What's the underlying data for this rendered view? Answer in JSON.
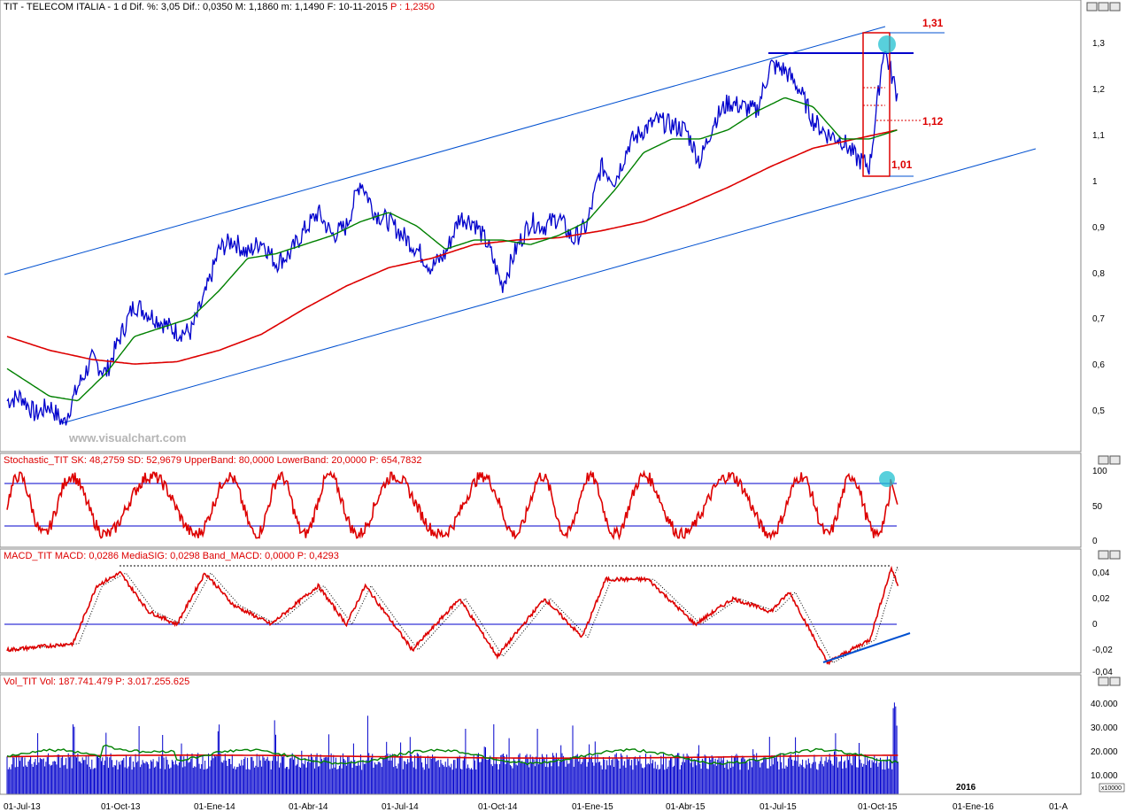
{
  "colors": {
    "price": "#0000cc",
    "ma_fast": "#008000",
    "ma_slow": "#dd0000",
    "channel": "#0050d0",
    "highlight": "#20c0d0",
    "header_red": "#dd0000"
  },
  "main_panel": {
    "header_text": "TIT - TELECOM ITALIA - 1 d Dif. %: 3,05 Dif.: 0,0350 M: 1,1860 m: 1,1490 F: 10-11-2015",
    "header_price": "P : 1,2350",
    "watermark": "www.visualchart.com",
    "annotations": {
      "high": "1,31",
      "mid": "1,12",
      "low": "1,01"
    },
    "y_ticks": [
      "1,3",
      "1,2",
      "1,1",
      "1",
      "0,9",
      "0,8",
      "0,7",
      "0,6",
      "0,5"
    ]
  },
  "stoch_panel": {
    "header": "Stochastic_TIT SK: 48,2759 SD: 52,9679 UpperBand: 80,0000 LowerBand: 20,0000 P: 654,7832",
    "y_ticks": [
      "100",
      "50",
      "0"
    ]
  },
  "macd_panel": {
    "header": "MACD_TIT MACD: 0,0286 MediaSIG: 0,0298 Band_MACD: 0,0000 P: 0,4293",
    "y_ticks": [
      "0,04",
      "0,02",
      "0",
      "-0,02",
      "-0,04"
    ]
  },
  "vol_panel": {
    "header": "Vol_TIT Vol: 187.741.479 P: 3.017.255.625",
    "y_ticks": [
      "40.000",
      "30.000",
      "20.000",
      "10.000"
    ],
    "scale_label": "x10000"
  },
  "x_axis": {
    "labels": [
      "01-Jul-13",
      "01-Oct-13",
      "01-Ene-14",
      "01-Abr-14",
      "01-Jul-14",
      "01-Oct-14",
      "01-Ene-15",
      "01-Abr-15",
      "01-Jul-15",
      "01-Oct-15",
      "01-Ene-16",
      "01-A"
    ],
    "year_label": "2016"
  },
  "chart_data": {
    "type": "line",
    "title": "TIT - TELECOM ITALIA - 1 d",
    "x_range": [
      "01-Jul-13",
      "01-A"
    ],
    "price_range": [
      0.45,
      1.31
    ],
    "price_series": [
      {
        "x": 0.0,
        "y": 0.52
      },
      {
        "x": 0.15,
        "y": 0.53
      },
      {
        "x": 0.3,
        "y": 0.49
      },
      {
        "x": 0.45,
        "y": 0.51
      },
      {
        "x": 0.6,
        "y": 0.47
      },
      {
        "x": 0.75,
        "y": 0.55
      },
      {
        "x": 0.9,
        "y": 0.61
      },
      {
        "x": 1.05,
        "y": 0.58
      },
      {
        "x": 1.2,
        "y": 0.66
      },
      {
        "x": 1.35,
        "y": 0.73
      },
      {
        "x": 1.5,
        "y": 0.71
      },
      {
        "x": 1.65,
        "y": 0.69
      },
      {
        "x": 1.8,
        "y": 0.67
      },
      {
        "x": 1.95,
        "y": 0.67
      },
      {
        "x": 2.1,
        "y": 0.75
      },
      {
        "x": 2.25,
        "y": 0.85
      },
      {
        "x": 2.4,
        "y": 0.87
      },
      {
        "x": 2.55,
        "y": 0.84
      },
      {
        "x": 2.7,
        "y": 0.87
      },
      {
        "x": 2.85,
        "y": 0.82
      },
      {
        "x": 3.0,
        "y": 0.84
      },
      {
        "x": 3.15,
        "y": 0.89
      },
      {
        "x": 3.3,
        "y": 0.93
      },
      {
        "x": 3.45,
        "y": 0.88
      },
      {
        "x": 3.6,
        "y": 0.9
      },
      {
        "x": 3.75,
        "y": 1.0
      },
      {
        "x": 3.9,
        "y": 0.93
      },
      {
        "x": 4.05,
        "y": 0.91
      },
      {
        "x": 4.2,
        "y": 0.88
      },
      {
        "x": 4.35,
        "y": 0.85
      },
      {
        "x": 4.5,
        "y": 0.81
      },
      {
        "x": 4.65,
        "y": 0.84
      },
      {
        "x": 4.8,
        "y": 0.92
      },
      {
        "x": 4.95,
        "y": 0.91
      },
      {
        "x": 5.1,
        "y": 0.86
      },
      {
        "x": 5.25,
        "y": 0.77
      },
      {
        "x": 5.4,
        "y": 0.85
      },
      {
        "x": 5.55,
        "y": 0.91
      },
      {
        "x": 5.7,
        "y": 0.9
      },
      {
        "x": 5.85,
        "y": 0.92
      },
      {
        "x": 6.0,
        "y": 0.87
      },
      {
        "x": 6.15,
        "y": 0.9
      },
      {
        "x": 6.3,
        "y": 1.03
      },
      {
        "x": 6.45,
        "y": 1.0
      },
      {
        "x": 6.6,
        "y": 1.08
      },
      {
        "x": 6.75,
        "y": 1.11
      },
      {
        "x": 6.9,
        "y": 1.13
      },
      {
        "x": 7.05,
        "y": 1.12
      },
      {
        "x": 7.2,
        "y": 1.11
      },
      {
        "x": 7.35,
        "y": 1.04
      },
      {
        "x": 7.5,
        "y": 1.13
      },
      {
        "x": 7.65,
        "y": 1.17
      },
      {
        "x": 7.8,
        "y": 1.16
      },
      {
        "x": 7.95,
        "y": 1.15
      },
      {
        "x": 8.1,
        "y": 1.25
      },
      {
        "x": 8.25,
        "y": 1.24
      },
      {
        "x": 8.4,
        "y": 1.2
      },
      {
        "x": 8.55,
        "y": 1.13
      },
      {
        "x": 8.7,
        "y": 1.1
      },
      {
        "x": 8.85,
        "y": 1.09
      },
      {
        "x": 9.0,
        "y": 1.05
      },
      {
        "x": 9.15,
        "y": 1.03
      },
      {
        "x": 9.3,
        "y": 1.29
      },
      {
        "x": 9.45,
        "y": 1.18
      }
    ],
    "ma_fast_series": [
      {
        "x": 0.0,
        "y": 0.59
      },
      {
        "x": 0.45,
        "y": 0.53
      },
      {
        "x": 0.75,
        "y": 0.52
      },
      {
        "x": 1.05,
        "y": 0.58
      },
      {
        "x": 1.35,
        "y": 0.66
      },
      {
        "x": 1.65,
        "y": 0.68
      },
      {
        "x": 1.95,
        "y": 0.7
      },
      {
        "x": 2.25,
        "y": 0.76
      },
      {
        "x": 2.55,
        "y": 0.83
      },
      {
        "x": 2.85,
        "y": 0.84
      },
      {
        "x": 3.15,
        "y": 0.86
      },
      {
        "x": 3.45,
        "y": 0.88
      },
      {
        "x": 3.75,
        "y": 0.91
      },
      {
        "x": 4.05,
        "y": 0.93
      },
      {
        "x": 4.35,
        "y": 0.9
      },
      {
        "x": 4.65,
        "y": 0.85
      },
      {
        "x": 4.95,
        "y": 0.87
      },
      {
        "x": 5.25,
        "y": 0.87
      },
      {
        "x": 5.55,
        "y": 0.86
      },
      {
        "x": 5.85,
        "y": 0.88
      },
      {
        "x": 6.15,
        "y": 0.91
      },
      {
        "x": 6.45,
        "y": 0.98
      },
      {
        "x": 6.75,
        "y": 1.06
      },
      {
        "x": 7.05,
        "y": 1.09
      },
      {
        "x": 7.35,
        "y": 1.09
      },
      {
        "x": 7.65,
        "y": 1.11
      },
      {
        "x": 7.95,
        "y": 1.15
      },
      {
        "x": 8.25,
        "y": 1.18
      },
      {
        "x": 8.55,
        "y": 1.16
      },
      {
        "x": 8.85,
        "y": 1.09
      },
      {
        "x": 9.15,
        "y": 1.09
      },
      {
        "x": 9.45,
        "y": 1.11
      }
    ],
    "ma_slow_series": [
      {
        "x": 0.0,
        "y": 0.66
      },
      {
        "x": 0.45,
        "y": 0.63
      },
      {
        "x": 0.9,
        "y": 0.61
      },
      {
        "x": 1.35,
        "y": 0.6
      },
      {
        "x": 1.8,
        "y": 0.605
      },
      {
        "x": 2.25,
        "y": 0.63
      },
      {
        "x": 2.7,
        "y": 0.665
      },
      {
        "x": 3.15,
        "y": 0.72
      },
      {
        "x": 3.6,
        "y": 0.77
      },
      {
        "x": 4.05,
        "y": 0.81
      },
      {
        "x": 4.5,
        "y": 0.83
      },
      {
        "x": 4.95,
        "y": 0.86
      },
      {
        "x": 5.4,
        "y": 0.87
      },
      {
        "x": 5.85,
        "y": 0.875
      },
      {
        "x": 6.3,
        "y": 0.89
      },
      {
        "x": 6.75,
        "y": 0.91
      },
      {
        "x": 7.2,
        "y": 0.945
      },
      {
        "x": 7.65,
        "y": 0.985
      },
      {
        "x": 8.1,
        "y": 1.03
      },
      {
        "x": 8.55,
        "y": 1.07
      },
      {
        "x": 9.0,
        "y": 1.09
      },
      {
        "x": 9.45,
        "y": 1.11
      }
    ],
    "levels": {
      "high": 1.31,
      "mid": 1.12,
      "low": 1.01,
      "resistance": 1.28
    },
    "stochastic": {
      "upper_band": 80,
      "lower_band": 20,
      "sk": 48.2759,
      "sd": 52.9679
    },
    "macd": {
      "macd": 0.0286,
      "signal": 0.0298,
      "band": 0.0,
      "prior_peak": 0.044
    },
    "volume": {
      "last": 187741479,
      "unit": "x10000",
      "max_tick": 40000
    }
  }
}
